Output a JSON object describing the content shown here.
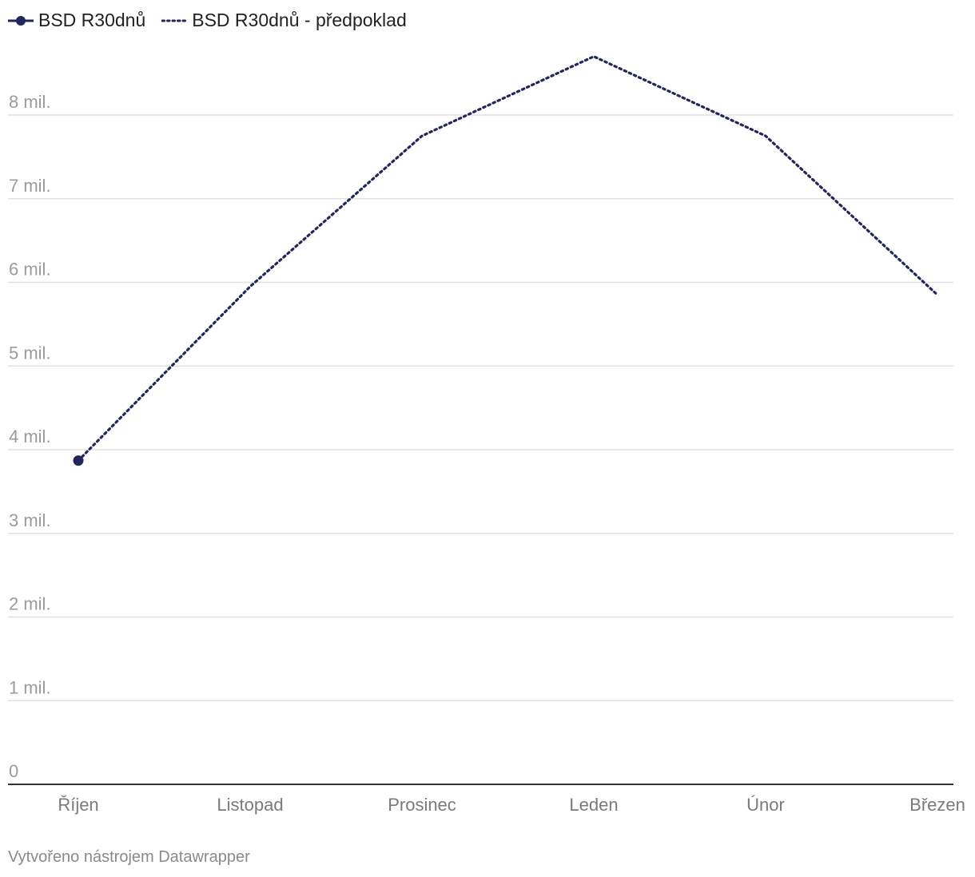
{
  "legend": [
    {
      "label": "BSD R30dnů",
      "style": "solid-marker",
      "color": "#22275a"
    },
    {
      "label": "BSD R30dnů - předpoklad",
      "style": "dotted",
      "color": "#22275a"
    }
  ],
  "footer": {
    "credit": "Vytvořeno nástrojem Datawrapper"
  },
  "chart_data": {
    "type": "line",
    "title": "",
    "xlabel": "",
    "ylabel": "",
    "categories": [
      "Říjen",
      "Listopad",
      "Prosinec",
      "Leden",
      "Únor",
      "Březen"
    ],
    "ylim": [
      0,
      8700000
    ],
    "yticks": [
      0,
      1000000,
      2000000,
      3000000,
      4000000,
      5000000,
      6000000,
      7000000,
      8000000
    ],
    "ytick_labels": [
      "0",
      "1 mil.",
      "2 mil.",
      "3 mil.",
      "4 mil.",
      "5 mil.",
      "6 mil.",
      "7 mil.",
      "8 mil."
    ],
    "grid": true,
    "legend_position": "top-left",
    "series": [
      {
        "name": "BSD R30dnů",
        "style": "solid-marker",
        "color": "#22275a",
        "values": [
          3870000,
          null,
          null,
          null,
          null,
          null
        ]
      },
      {
        "name": "BSD R30dnů - předpoklad",
        "style": "dotted",
        "color": "#22275a",
        "values": [
          3870000,
          5950000,
          7750000,
          8700000,
          7750000,
          5850000
        ]
      }
    ]
  }
}
